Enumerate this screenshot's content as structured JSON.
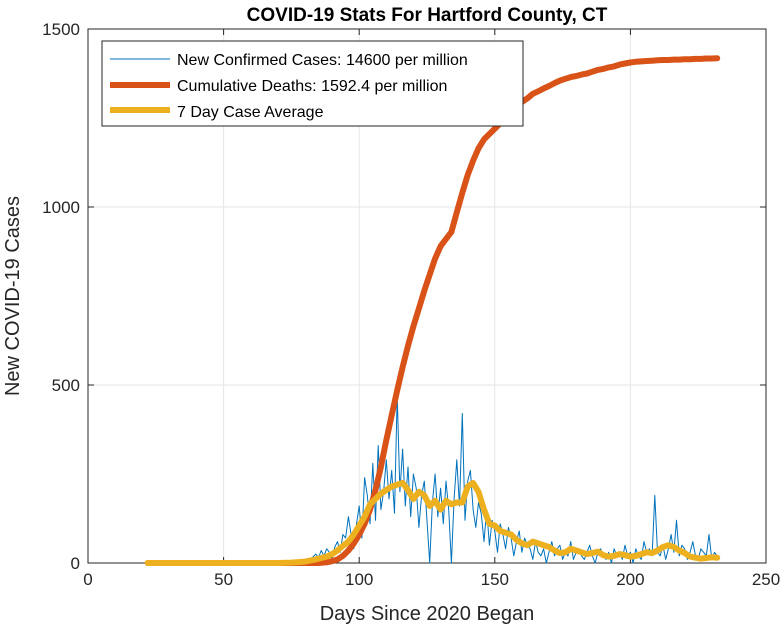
{
  "chart_data": {
    "type": "line",
    "title": "COVID-19 Stats For Hartford County, CT",
    "xlabel": "Days Since 2020 Began",
    "ylabel": "New COVID-19 Cases",
    "xlim": [
      0,
      250
    ],
    "ylim": [
      0,
      1500
    ],
    "xticks": [
      0,
      50,
      100,
      150,
      200,
      250
    ],
    "yticks": [
      0,
      500,
      1000,
      1500
    ],
    "grid": true,
    "legend_position": "top-left",
    "series": [
      {
        "name": "New Confirmed Cases: 14600 per million",
        "color": "#0072BD",
        "x": [
          22,
          30,
          40,
          50,
          60,
          70,
          75,
          80,
          82,
          84,
          85,
          86,
          87,
          88,
          89,
          90,
          91,
          92,
          93,
          94,
          95,
          96,
          97,
          98,
          99,
          100,
          101,
          102,
          103,
          104,
          105,
          106,
          107,
          108,
          109,
          110,
          111,
          112,
          113,
          114,
          115,
          116,
          117,
          118,
          119,
          120,
          121,
          122,
          123,
          124,
          125,
          126,
          127,
          128,
          129,
          130,
          131,
          132,
          133,
          134,
          135,
          136,
          137,
          138,
          139,
          140,
          141,
          142,
          143,
          144,
          145,
          146,
          147,
          148,
          149,
          150,
          151,
          152,
          153,
          154,
          155,
          156,
          157,
          158,
          159,
          160,
          161,
          162,
          163,
          164,
          165,
          166,
          167,
          168,
          169,
          170,
          171,
          172,
          173,
          174,
          175,
          176,
          177,
          178,
          179,
          180,
          181,
          182,
          183,
          184,
          185,
          186,
          187,
          188,
          189,
          190,
          191,
          192,
          193,
          194,
          195,
          196,
          197,
          198,
          199,
          200,
          201,
          202,
          203,
          204,
          205,
          206,
          207,
          208,
          209,
          210,
          211,
          212,
          213,
          214,
          215,
          216,
          217,
          218,
          219,
          220,
          221,
          222,
          223,
          224,
          225,
          226,
          227,
          228,
          229,
          230,
          231,
          232
        ],
        "values": [
          0,
          0,
          0,
          0,
          0,
          0,
          2,
          5,
          10,
          25,
          15,
          35,
          20,
          40,
          30,
          10,
          45,
          60,
          30,
          80,
          70,
          130,
          80,
          40,
          110,
          160,
          70,
          240,
          190,
          110,
          280,
          120,
          330,
          150,
          200,
          290,
          180,
          260,
          140,
          470,
          200,
          320,
          160,
          270,
          130,
          250,
          210,
          100,
          190,
          230,
          120,
          0,
          170,
          250,
          130,
          210,
          110,
          230,
          150,
          0,
          180,
          290,
          160,
          420,
          120,
          230,
          260,
          150,
          100,
          170,
          140,
          60,
          150,
          50,
          120,
          90,
          30,
          110,
          80,
          40,
          100,
          70,
          20,
          60,
          90,
          30,
          70,
          50,
          40,
          10,
          60,
          30,
          20,
          40,
          0,
          30,
          60,
          20,
          40,
          50,
          10,
          30,
          20,
          60,
          10,
          30,
          40,
          20,
          10,
          30,
          50,
          20,
          0,
          30,
          40,
          20,
          10,
          30,
          0,
          40,
          20,
          30,
          10,
          50,
          20,
          30,
          0,
          40,
          20,
          10,
          60,
          30,
          40,
          20,
          190,
          30,
          20,
          50,
          10,
          40,
          80,
          30,
          120,
          20,
          50,
          40,
          10,
          30,
          60,
          20,
          10,
          40,
          30,
          20,
          80,
          10,
          30,
          20
        ]
      },
      {
        "name": "Cumulative Deaths: 1592.4 per million",
        "color": "#D95319",
        "x": [
          22,
          40,
          60,
          70,
          80,
          85,
          88,
          90,
          92,
          94,
          96,
          98,
          100,
          102,
          104,
          106,
          108,
          110,
          112,
          114,
          116,
          118,
          120,
          122,
          124,
          126,
          128,
          130,
          132,
          134,
          136,
          138,
          140,
          142,
          144,
          146,
          148,
          150,
          152,
          154,
          156,
          158,
          160,
          162,
          164,
          166,
          168,
          170,
          172,
          174,
          176,
          178,
          180,
          182,
          184,
          186,
          188,
          190,
          192,
          194,
          196,
          198,
          200,
          202,
          204,
          206,
          208,
          210,
          212,
          214,
          216,
          218,
          220,
          222,
          224,
          226,
          228,
          230,
          232
        ],
        "values": [
          0,
          0,
          0,
          0,
          0,
          0,
          2,
          5,
          10,
          20,
          35,
          55,
          80,
          110,
          150,
          205,
          270,
          345,
          415,
          485,
          550,
          610,
          665,
          715,
          765,
          810,
          855,
          890,
          910,
          930,
          985,
          1040,
          1090,
          1130,
          1165,
          1190,
          1205,
          1220,
          1235,
          1250,
          1265,
          1280,
          1295,
          1305,
          1318,
          1325,
          1333,
          1340,
          1348,
          1355,
          1360,
          1365,
          1368,
          1372,
          1375,
          1380,
          1385,
          1388,
          1392,
          1395,
          1400,
          1403,
          1406,
          1408,
          1409,
          1410,
          1411,
          1412,
          1413,
          1413,
          1414,
          1414,
          1415,
          1415,
          1416,
          1416,
          1417,
          1417,
          1418
        ]
      },
      {
        "name": "7 Day Case Average",
        "color": "#EDB120",
        "x": [
          22,
          40,
          60,
          70,
          75,
          80,
          84,
          88,
          90,
          92,
          94,
          96,
          98,
          100,
          102,
          104,
          106,
          108,
          110,
          112,
          114,
          116,
          118,
          120,
          122,
          124,
          126,
          128,
          130,
          132,
          134,
          136,
          138,
          140,
          142,
          144,
          146,
          148,
          150,
          152,
          154,
          156,
          158,
          160,
          162,
          164,
          166,
          168,
          170,
          172,
          174,
          176,
          178,
          180,
          182,
          184,
          186,
          188,
          190,
          192,
          194,
          196,
          198,
          200,
          202,
          204,
          206,
          208,
          210,
          212,
          214,
          216,
          218,
          220,
          222,
          224,
          226,
          228,
          230,
          232
        ],
        "values": [
          0,
          0,
          0,
          0,
          1,
          4,
          10,
          18,
          25,
          35,
          48,
          60,
          80,
          105,
          130,
          165,
          180,
          195,
          205,
          215,
          220,
          225,
          205,
          180,
          200,
          190,
          160,
          175,
          150,
          175,
          165,
          170,
          170,
          215,
          225,
          200,
          150,
          110,
          105,
          90,
          85,
          80,
          65,
          55,
          50,
          60,
          55,
          50,
          45,
          35,
          28,
          30,
          40,
          35,
          30,
          25,
          28,
          32,
          22,
          18,
          20,
          25,
          22,
          18,
          20,
          25,
          30,
          28,
          35,
          45,
          50,
          45,
          35,
          28,
          18,
          15,
          12,
          14,
          16,
          15
        ]
      }
    ]
  }
}
